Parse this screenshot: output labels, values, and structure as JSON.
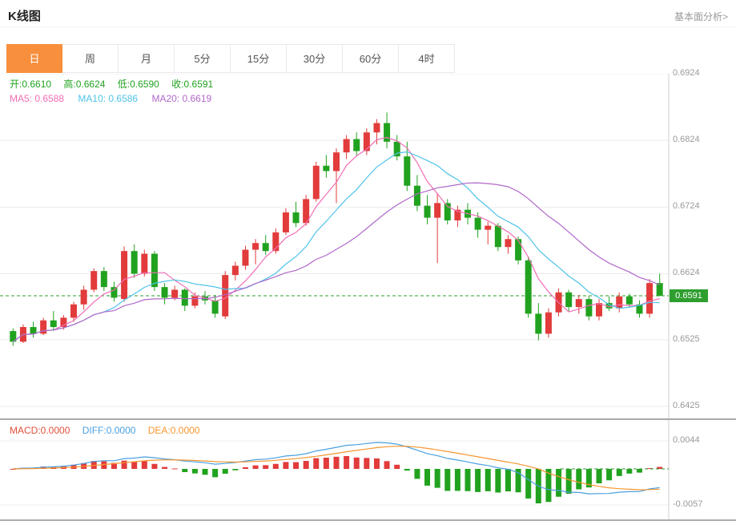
{
  "header": {
    "title": "K线图",
    "link": "基本面分析>"
  },
  "tabs": {
    "items": [
      "日",
      "周",
      "月",
      "5分",
      "15分",
      "30分",
      "60分",
      "4时"
    ],
    "active_index": 0
  },
  "legend": {
    "open": "开:0.6610",
    "high": "高:0.6624",
    "low": "低:0.6590",
    "close": "收:0.6591",
    "ma5": "MA5: 0.6588",
    "ma10": "MA10: 0.6586",
    "ma20": "MA20: 0.6619"
  },
  "macd_legend": {
    "macd": "MACD:0.0000",
    "diff": "DIFF:0.0000",
    "dea": "DEA:0.0000"
  },
  "price_tag": "0.6591",
  "colors": {
    "up": "#e23b3b",
    "down": "#21a21f",
    "tab_active": "#f78f3d",
    "ma5": "#f06eb6",
    "ma10": "#4fc3e8",
    "ma20": "#b168c9",
    "diff_line": "#4aa0e0",
    "dea_line": "#f5962f",
    "macd_text": "#e2503a",
    "price_line": "#2e9e2e",
    "axis_text": "#999999",
    "grid": "#ececec"
  },
  "chart_data": {
    "type": "candlestick",
    "title": "K线图",
    "y_axis_labels": [
      "0.6924",
      "0.6824",
      "0.6724",
      "0.6624",
      "0.6525",
      "0.6425"
    ],
    "price_range": [
      0.6425,
      0.6924
    ],
    "current_price": 0.6591,
    "ohlc": {
      "open": 0.661,
      "high": 0.6624,
      "low": 0.659,
      "close": 0.6591
    },
    "ma": {
      "periods": [
        5,
        10,
        20
      ],
      "ma5": 0.6588,
      "ma10": 0.6586,
      "ma20": 0.6619
    },
    "candles": [
      [
        0.6538,
        0.6542,
        0.6516,
        0.6522
      ],
      [
        0.6522,
        0.6548,
        0.652,
        0.6544
      ],
      [
        0.6544,
        0.6552,
        0.6528,
        0.6534
      ],
      [
        0.6534,
        0.6558,
        0.6532,
        0.6554
      ],
      [
        0.6554,
        0.6568,
        0.6538,
        0.6544
      ],
      [
        0.6544,
        0.6562,
        0.654,
        0.6558
      ],
      [
        0.6558,
        0.6582,
        0.6552,
        0.6578
      ],
      [
        0.6578,
        0.6606,
        0.657,
        0.66
      ],
      [
        0.66,
        0.6632,
        0.6596,
        0.6628
      ],
      [
        0.6628,
        0.6634,
        0.6598,
        0.6604
      ],
      [
        0.6604,
        0.6612,
        0.6582,
        0.6588
      ],
      [
        0.6586,
        0.6665,
        0.6582,
        0.6658
      ],
      [
        0.6658,
        0.6668,
        0.6618,
        0.6624
      ],
      [
        0.6624,
        0.666,
        0.662,
        0.6654
      ],
      [
        0.6654,
        0.6658,
        0.6598,
        0.6604
      ],
      [
        0.6604,
        0.661,
        0.6578,
        0.6588
      ],
      [
        0.6588,
        0.6606,
        0.6584,
        0.66
      ],
      [
        0.66,
        0.6602,
        0.6568,
        0.6576
      ],
      [
        0.6576,
        0.6596,
        0.6572,
        0.659
      ],
      [
        0.659,
        0.6598,
        0.6578,
        0.6584
      ],
      [
        0.6584,
        0.6592,
        0.6558,
        0.6564
      ],
      [
        0.656,
        0.6628,
        0.6556,
        0.6622
      ],
      [
        0.6622,
        0.6642,
        0.6614,
        0.6636
      ],
      [
        0.6636,
        0.6666,
        0.663,
        0.666
      ],
      [
        0.666,
        0.6676,
        0.6638,
        0.667
      ],
      [
        0.667,
        0.6682,
        0.6652,
        0.6658
      ],
      [
        0.6658,
        0.6692,
        0.6654,
        0.6686
      ],
      [
        0.6686,
        0.6722,
        0.6682,
        0.6716
      ],
      [
        0.6716,
        0.6732,
        0.6694,
        0.67
      ],
      [
        0.67,
        0.6742,
        0.6696,
        0.6736
      ],
      [
        0.6736,
        0.6792,
        0.6732,
        0.6786
      ],
      [
        0.6786,
        0.6802,
        0.6768,
        0.6778
      ],
      [
        0.6778,
        0.6812,
        0.673,
        0.6806
      ],
      [
        0.6806,
        0.6832,
        0.6796,
        0.6826
      ],
      [
        0.6826,
        0.6836,
        0.68,
        0.6808
      ],
      [
        0.6808,
        0.6842,
        0.6802,
        0.6836
      ],
      [
        0.6836,
        0.6856,
        0.6818,
        0.685
      ],
      [
        0.685,
        0.6866,
        0.6812,
        0.6822
      ],
      [
        0.6822,
        0.6832,
        0.6794,
        0.68
      ],
      [
        0.68,
        0.6822,
        0.6748,
        0.6756
      ],
      [
        0.6756,
        0.6772,
        0.6718,
        0.6726
      ],
      [
        0.6726,
        0.6742,
        0.6698,
        0.6708
      ],
      [
        0.6708,
        0.6744,
        0.664,
        0.673
      ],
      [
        0.673,
        0.6736,
        0.6698,
        0.6704
      ],
      [
        0.6704,
        0.6726,
        0.6694,
        0.672
      ],
      [
        0.672,
        0.673,
        0.6698,
        0.6708
      ],
      [
        0.6708,
        0.6716,
        0.6678,
        0.669
      ],
      [
        0.669,
        0.6702,
        0.6668,
        0.6696
      ],
      [
        0.6696,
        0.67,
        0.6658,
        0.6664
      ],
      [
        0.6664,
        0.6682,
        0.6654,
        0.6676
      ],
      [
        0.6676,
        0.668,
        0.6638,
        0.6644
      ],
      [
        0.6644,
        0.665,
        0.6558,
        0.6564
      ],
      [
        0.6564,
        0.658,
        0.6524,
        0.6534
      ],
      [
        0.6534,
        0.6572,
        0.6528,
        0.6566
      ],
      [
        0.6566,
        0.6602,
        0.656,
        0.6596
      ],
      [
        0.6596,
        0.66,
        0.6568,
        0.6574
      ],
      [
        0.6574,
        0.6592,
        0.6564,
        0.6586
      ],
      [
        0.6586,
        0.659,
        0.6554,
        0.656
      ],
      [
        0.656,
        0.6586,
        0.6554,
        0.658
      ],
      [
        0.658,
        0.659,
        0.6568,
        0.6572
      ],
      [
        0.6572,
        0.6596,
        0.6566,
        0.659
      ],
      [
        0.659,
        0.6594,
        0.6574,
        0.6578
      ],
      [
        0.6578,
        0.6584,
        0.6558,
        0.6564
      ],
      [
        0.6564,
        0.6616,
        0.6558,
        0.661
      ],
      [
        0.661,
        0.6624,
        0.659,
        0.6591
      ]
    ],
    "macd": {
      "axis_labels": [
        "0.0044",
        "-0.0057"
      ],
      "range": [
        0.0044,
        -0.0057
      ],
      "macd": 0,
      "diff": 0,
      "dea": 0
    }
  }
}
